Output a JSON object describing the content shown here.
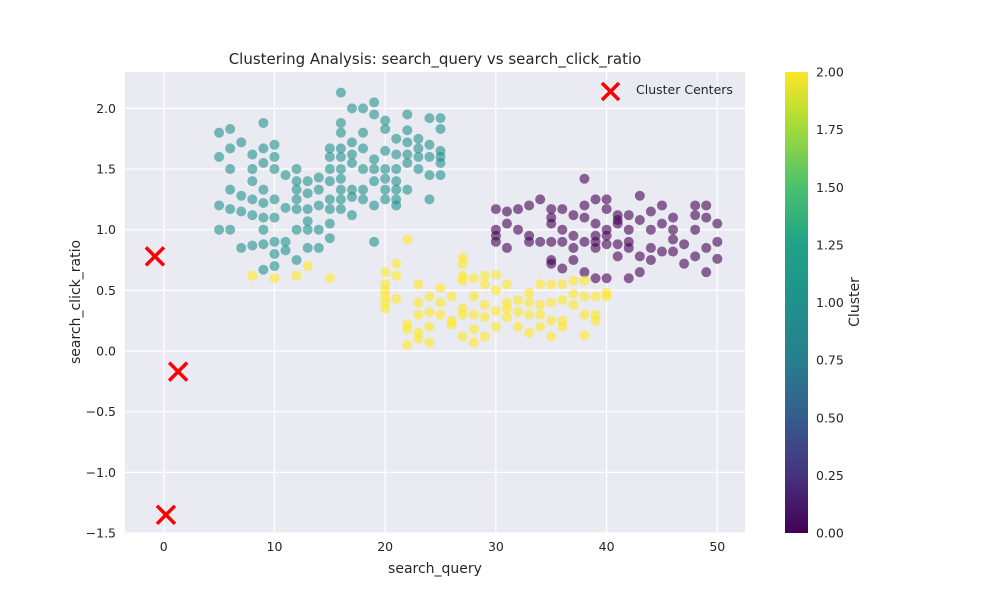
{
  "chart_data": {
    "type": "scatter",
    "title": "Clustering Analysis: search_query vs search_click_ratio",
    "xlabel": "search_query",
    "ylabel": "search_click_ratio",
    "xlim": [
      -3.5,
      52.5
    ],
    "ylim": [
      -1.5,
      2.3
    ],
    "xticks": [
      0,
      10,
      20,
      30,
      40,
      50
    ],
    "yticks": [
      -1.5,
      -1.0,
      -0.5,
      0.0,
      0.5,
      1.0,
      1.5,
      2.0
    ],
    "xtick_labels": [
      "0",
      "10",
      "20",
      "30",
      "40",
      "50"
    ],
    "ytick_labels": [
      "−1.5",
      "−1.0",
      "−0.5",
      "0.0",
      "0.5",
      "1.0",
      "1.5",
      "2.0"
    ],
    "grid": true,
    "background": "#eaeaf2",
    "colormap": "viridis",
    "colorbar": {
      "label": "Cluster",
      "range": [
        0,
        2
      ],
      "ticks": [
        0,
        0.25,
        0.5,
        0.75,
        1.0,
        1.25,
        1.5,
        1.75,
        2.0
      ],
      "tick_labels": [
        "0.00",
        "0.25",
        "0.50",
        "0.75",
        "1.00",
        "1.25",
        "1.50",
        "1.75",
        "2.00"
      ]
    },
    "legend": {
      "entries": [
        "Cluster Centers"
      ],
      "placement": "top-right"
    },
    "centers": {
      "name": "Cluster Centers",
      "color": "#ff0000",
      "marker": "x",
      "points": [
        [
          -0.8,
          0.78
        ],
        [
          1.3,
          -0.17
        ],
        [
          0.2,
          -1.35
        ]
      ]
    },
    "series": [
      {
        "cluster": 0,
        "color": "#440154",
        "points": [
          [
            30,
            1.17
          ],
          [
            30,
            1.0
          ],
          [
            30,
            0.95
          ],
          [
            30,
            0.9
          ],
          [
            31,
            1.15
          ],
          [
            31,
            1.05
          ],
          [
            31,
            0.85
          ],
          [
            32,
            1.17
          ],
          [
            32,
            1.0
          ],
          [
            33,
            1.2
          ],
          [
            33,
            0.95
          ],
          [
            33,
            0.9
          ],
          [
            34,
            1.25
          ],
          [
            34,
            0.9
          ],
          [
            35,
            1.17
          ],
          [
            35,
            1.1
          ],
          [
            35,
            1.05
          ],
          [
            35,
            0.9
          ],
          [
            35,
            0.75
          ],
          [
            35,
            0.72
          ],
          [
            36,
            1.17
          ],
          [
            36,
            1.0
          ],
          [
            36,
            0.9
          ],
          [
            36,
            0.68
          ],
          [
            37,
            1.12
          ],
          [
            37,
            0.95
          ],
          [
            37,
            0.85
          ],
          [
            37,
            0.75
          ],
          [
            38,
            1.42
          ],
          [
            38,
            1.2
          ],
          [
            38,
            1.1
          ],
          [
            38,
            0.9
          ],
          [
            38,
            0.65
          ],
          [
            39,
            1.25
          ],
          [
            39,
            1.05
          ],
          [
            39,
            0.95
          ],
          [
            39,
            0.9
          ],
          [
            39,
            0.85
          ],
          [
            39,
            0.6
          ],
          [
            40,
            1.25
          ],
          [
            40,
            1.17
          ],
          [
            40,
            1.0
          ],
          [
            40,
            0.95
          ],
          [
            40,
            0.88
          ],
          [
            40,
            0.6
          ],
          [
            41,
            1.12
          ],
          [
            41,
            1.08
          ],
          [
            41,
            1.05
          ],
          [
            41,
            0.88
          ],
          [
            41,
            0.78
          ],
          [
            42,
            1.12
          ],
          [
            42,
            1.0
          ],
          [
            42,
            0.9
          ],
          [
            42,
            0.85
          ],
          [
            42,
            0.6
          ],
          [
            43,
            1.28
          ],
          [
            43,
            1.08
          ],
          [
            43,
            0.78
          ],
          [
            43,
            0.65
          ],
          [
            44,
            1.15
          ],
          [
            44,
            1.0
          ],
          [
            44,
            0.85
          ],
          [
            44,
            0.75
          ],
          [
            45,
            1.2
          ],
          [
            45,
            1.05
          ],
          [
            45,
            0.82
          ],
          [
            46,
            1.1
          ],
          [
            46,
            1.0
          ],
          [
            46,
            0.92
          ],
          [
            46,
            0.82
          ],
          [
            47,
            0.88
          ],
          [
            47,
            0.72
          ],
          [
            48,
            1.2
          ],
          [
            48,
            1.12
          ],
          [
            48,
            1.0
          ],
          [
            48,
            0.78
          ],
          [
            49,
            1.2
          ],
          [
            49,
            1.1
          ],
          [
            49,
            0.85
          ],
          [
            49,
            0.65
          ],
          [
            50,
            1.05
          ],
          [
            50,
            0.9
          ],
          [
            50,
            0.76
          ]
        ]
      },
      {
        "cluster": 1,
        "color": "#21918c",
        "points": [
          [
            5,
            1.8
          ],
          [
            5,
            1.6
          ],
          [
            5,
            1.2
          ],
          [
            5,
            1.0
          ],
          [
            6,
            1.83
          ],
          [
            6,
            1.67
          ],
          [
            6,
            1.5
          ],
          [
            6,
            1.33
          ],
          [
            6,
            1.17
          ],
          [
            6,
            1.0
          ],
          [
            7,
            1.72
          ],
          [
            7,
            1.28
          ],
          [
            7,
            1.15
          ],
          [
            7,
            0.85
          ],
          [
            8,
            1.62
          ],
          [
            8,
            1.5
          ],
          [
            8,
            1.4
          ],
          [
            8,
            1.25
          ],
          [
            8,
            1.12
          ],
          [
            8,
            0.87
          ],
          [
            9,
            1.88
          ],
          [
            9,
            1.67
          ],
          [
            9,
            1.55
          ],
          [
            9,
            1.33
          ],
          [
            9,
            1.22
          ],
          [
            9,
            1.1
          ],
          [
            9,
            1.0
          ],
          [
            9,
            0.88
          ],
          [
            9,
            0.67
          ],
          [
            10,
            1.7
          ],
          [
            10,
            1.6
          ],
          [
            10,
            1.5
          ],
          [
            10,
            1.25
          ],
          [
            10,
            1.1
          ],
          [
            10,
            0.9
          ],
          [
            10,
            0.8
          ],
          [
            10,
            0.7
          ],
          [
            11,
            1.45
          ],
          [
            11,
            1.18
          ],
          [
            11,
            0.9
          ],
          [
            11,
            0.83
          ],
          [
            12,
            1.5
          ],
          [
            12,
            1.4
          ],
          [
            12,
            1.33
          ],
          [
            12,
            1.25
          ],
          [
            12,
            1.17
          ],
          [
            12,
            1.0
          ],
          [
            12,
            0.75
          ],
          [
            13,
            1.4
          ],
          [
            13,
            1.3
          ],
          [
            13,
            1.17
          ],
          [
            13,
            1.07
          ],
          [
            13,
            1.0
          ],
          [
            13,
            0.85
          ],
          [
            14,
            1.43
          ],
          [
            14,
            1.33
          ],
          [
            14,
            1.2
          ],
          [
            14,
            1.0
          ],
          [
            14,
            0.85
          ],
          [
            15,
            1.67
          ],
          [
            15,
            1.6
          ],
          [
            15,
            1.5
          ],
          [
            15,
            1.4
          ],
          [
            15,
            1.25
          ],
          [
            15,
            1.17
          ],
          [
            15,
            1.05
          ],
          [
            15,
            0.93
          ],
          [
            16,
            2.13
          ],
          [
            16,
            1.88
          ],
          [
            16,
            1.8
          ],
          [
            16,
            1.67
          ],
          [
            16,
            1.6
          ],
          [
            16,
            1.5
          ],
          [
            16,
            1.42
          ],
          [
            16,
            1.33
          ],
          [
            16,
            1.25
          ],
          [
            16,
            1.17
          ],
          [
            17,
            2.0
          ],
          [
            17,
            1.72
          ],
          [
            17,
            1.62
          ],
          [
            17,
            1.55
          ],
          [
            17,
            1.33
          ],
          [
            17,
            1.27
          ],
          [
            17,
            1.12
          ],
          [
            18,
            2.0
          ],
          [
            18,
            1.8
          ],
          [
            18,
            1.67
          ],
          [
            18,
            1.5
          ],
          [
            18,
            1.33
          ],
          [
            18,
            1.25
          ],
          [
            19,
            2.05
          ],
          [
            19,
            1.95
          ],
          [
            19,
            1.58
          ],
          [
            19,
            1.5
          ],
          [
            19,
            1.4
          ],
          [
            19,
            1.2
          ],
          [
            19,
            0.9
          ],
          [
            20,
            1.9
          ],
          [
            20,
            1.83
          ],
          [
            20,
            1.65
          ],
          [
            20,
            1.5
          ],
          [
            20,
            1.42
          ],
          [
            20,
            1.33
          ],
          [
            20,
            1.25
          ],
          [
            21,
            1.75
          ],
          [
            21,
            1.62
          ],
          [
            21,
            1.5
          ],
          [
            21,
            1.4
          ],
          [
            21,
            1.33
          ],
          [
            21,
            1.25
          ],
          [
            21,
            1.2
          ],
          [
            22,
            1.95
          ],
          [
            22,
            1.82
          ],
          [
            22,
            1.72
          ],
          [
            22,
            1.62
          ],
          [
            22,
            1.55
          ],
          [
            22,
            1.33
          ],
          [
            23,
            1.75
          ],
          [
            23,
            1.67
          ],
          [
            23,
            1.6
          ],
          [
            23,
            1.5
          ],
          [
            24,
            1.92
          ],
          [
            24,
            1.7
          ],
          [
            24,
            1.6
          ],
          [
            24,
            1.45
          ],
          [
            24,
            1.25
          ],
          [
            25,
            1.92
          ],
          [
            25,
            1.83
          ],
          [
            25,
            1.65
          ],
          [
            25,
            1.6
          ],
          [
            25,
            1.55
          ],
          [
            25,
            1.45
          ]
        ]
      },
      {
        "cluster": 2,
        "color": "#fde725",
        "points": [
          [
            8,
            0.62
          ],
          [
            10,
            0.6
          ],
          [
            12,
            0.62
          ],
          [
            13,
            0.7
          ],
          [
            15,
            0.6
          ],
          [
            20,
            0.65
          ],
          [
            20,
            0.55
          ],
          [
            20,
            0.5
          ],
          [
            20,
            0.45
          ],
          [
            20,
            0.4
          ],
          [
            20,
            0.35
          ],
          [
            21,
            0.72
          ],
          [
            21,
            0.62
          ],
          [
            21,
            0.43
          ],
          [
            22,
            0.92
          ],
          [
            22,
            0.22
          ],
          [
            22,
            0.18
          ],
          [
            22,
            0.05
          ],
          [
            23,
            0.55
          ],
          [
            23,
            0.4
          ],
          [
            23,
            0.3
          ],
          [
            23,
            0.15
          ],
          [
            23,
            0.1
          ],
          [
            24,
            0.45
          ],
          [
            24,
            0.32
          ],
          [
            24,
            0.2
          ],
          [
            24,
            0.07
          ],
          [
            25,
            0.52
          ],
          [
            25,
            0.4
          ],
          [
            25,
            0.3
          ],
          [
            26,
            0.45
          ],
          [
            26,
            0.25
          ],
          [
            26,
            0.22
          ],
          [
            27,
            0.77
          ],
          [
            27,
            0.72
          ],
          [
            27,
            0.62
          ],
          [
            27,
            0.58
          ],
          [
            27,
            0.35
          ],
          [
            27,
            0.3
          ],
          [
            27,
            0.12
          ],
          [
            28,
            0.6
          ],
          [
            28,
            0.45
          ],
          [
            28,
            0.3
          ],
          [
            28,
            0.18
          ],
          [
            28,
            0.07
          ],
          [
            29,
            0.62
          ],
          [
            29,
            0.55
          ],
          [
            29,
            0.38
          ],
          [
            29,
            0.28
          ],
          [
            29,
            0.12
          ],
          [
            30,
            0.63
          ],
          [
            30,
            0.5
          ],
          [
            30,
            0.33
          ],
          [
            30,
            0.2
          ],
          [
            31,
            0.55
          ],
          [
            31,
            0.4
          ],
          [
            31,
            0.35
          ],
          [
            31,
            0.28
          ],
          [
            32,
            0.42
          ],
          [
            32,
            0.32
          ],
          [
            32,
            0.2
          ],
          [
            33,
            0.48
          ],
          [
            33,
            0.4
          ],
          [
            33,
            0.3
          ],
          [
            33,
            0.15
          ],
          [
            34,
            0.55
          ],
          [
            34,
            0.38
          ],
          [
            34,
            0.3
          ],
          [
            34,
            0.2
          ],
          [
            35,
            0.55
          ],
          [
            35,
            0.4
          ],
          [
            35,
            0.25
          ],
          [
            35,
            0.12
          ],
          [
            36,
            0.55
          ],
          [
            36,
            0.42
          ],
          [
            36,
            0.25
          ],
          [
            36,
            0.2
          ],
          [
            37,
            0.58
          ],
          [
            37,
            0.47
          ],
          [
            37,
            0.38
          ],
          [
            38,
            0.58
          ],
          [
            38,
            0.45
          ],
          [
            38,
            0.3
          ],
          [
            38,
            0.13
          ],
          [
            39,
            0.45
          ],
          [
            39,
            0.3
          ],
          [
            39,
            0.25
          ],
          [
            40,
            0.48
          ],
          [
            40,
            0.45
          ]
        ]
      }
    ]
  }
}
